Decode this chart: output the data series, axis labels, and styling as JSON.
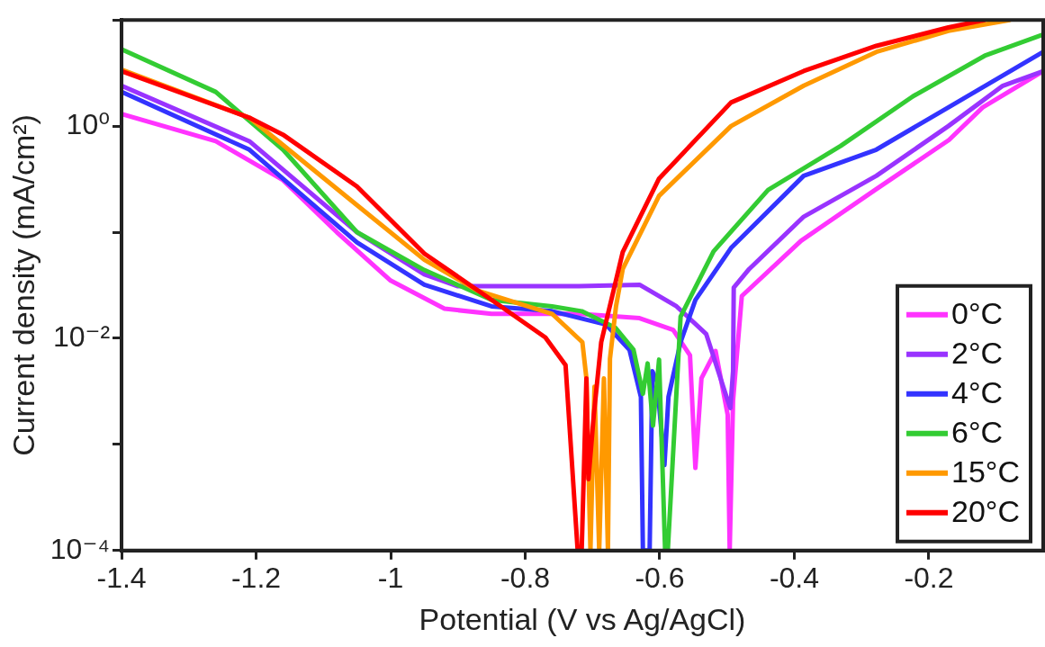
{
  "chart_data": {
    "type": "line",
    "xlabel": "Potential (V vs Ag/AgCl)",
    "ylabel": "Current density (mA/cm²)",
    "xlim": [
      -1.4,
      -0.03
    ],
    "xticks": [
      -1.4,
      -1.2,
      -1,
      -0.8,
      -0.6,
      -0.4,
      -0.2
    ],
    "ylim": [
      0.0001,
      10
    ],
    "yticks": [
      {
        "value": 0.0001,
        "label": "10⁻⁴"
      },
      {
        "value": 0.001,
        "label": null
      },
      {
        "value": 0.01,
        "label": "10⁻²"
      },
      {
        "value": 0.1,
        "label": null
      },
      {
        "value": 1,
        "label": "10⁰"
      },
      {
        "value": 10,
        "label": null
      }
    ],
    "log": "y",
    "grid": false,
    "legend": "bottom right",
    "marker": "none",
    "line_style": "solid",
    "series": [
      {
        "name": "0°C",
        "color": "#ff33ff",
        "x": [
          -1.4,
          -1.26,
          -1.16,
          -1.08,
          -1.0,
          -0.92,
          -0.85,
          -0.72,
          -0.63,
          -0.58,
          -0.555,
          -0.547,
          -0.538,
          -0.517,
          -0.499,
          -0.496,
          -0.491,
          -0.478,
          -0.39,
          -0.28,
          -0.17,
          -0.12,
          -0.03
        ],
        "values": [
          1.3,
          0.72,
          0.31,
          0.1,
          0.035,
          0.019,
          0.017,
          0.017,
          0.0155,
          0.012,
          0.0069,
          0.0006,
          0.0042,
          0.0076,
          0.0019,
          0.0001,
          0.0026,
          0.025,
          0.083,
          0.25,
          0.74,
          1.5,
          3.3
        ]
      },
      {
        "name": "2°C",
        "color": "#9933ff",
        "x": [
          -1.4,
          -1.21,
          -1.05,
          -0.95,
          -0.9,
          -0.72,
          -0.63,
          -0.575,
          -0.531,
          -0.499,
          -0.495,
          -0.491,
          -0.49,
          -0.467,
          -0.386,
          -0.278,
          -0.171,
          -0.09,
          -0.03
        ],
        "values": [
          2.4,
          0.72,
          0.1,
          0.04,
          0.031,
          0.031,
          0.032,
          0.02,
          0.011,
          0.0026,
          0.0022,
          0.0049,
          0.03,
          0.045,
          0.14,
          0.34,
          1.0,
          2.4,
          3.3
        ]
      },
      {
        "name": "4°C",
        "color": "#3333ff",
        "x": [
          -1.4,
          -1.21,
          -1.05,
          -0.95,
          -0.85,
          -0.76,
          -0.68,
          -0.645,
          -0.628,
          -0.625,
          -0.615,
          -0.611,
          -0.604,
          -0.593,
          -0.587,
          -0.569,
          -0.547,
          -0.494,
          -0.386,
          -0.278,
          -0.171,
          -0.03
        ],
        "values": [
          2.1,
          0.6,
          0.08,
          0.032,
          0.02,
          0.018,
          0.0135,
          0.0078,
          0.0028,
          0.0001,
          0.0001,
          0.0049,
          0.0039,
          0.00064,
          0.0028,
          0.0092,
          0.023,
          0.071,
          0.34,
          0.6,
          1.5,
          5.0
        ]
      },
      {
        "name": "6°C",
        "color": "#33cc33",
        "x": [
          -1.4,
          -1.26,
          -1.16,
          -1.05,
          -0.95,
          -0.85,
          -0.76,
          -0.716,
          -0.666,
          -0.639,
          -0.625,
          -0.618,
          -0.61,
          -0.601,
          -0.592,
          -0.588,
          -0.569,
          -0.52,
          -0.439,
          -0.331,
          -0.224,
          -0.117,
          -0.03
        ],
        "values": [
          5.3,
          2.1,
          0.6,
          0.1,
          0.044,
          0.023,
          0.02,
          0.018,
          0.0126,
          0.0078,
          0.003,
          0.0058,
          0.0015,
          0.0063,
          0.0001,
          0.0001,
          0.016,
          0.066,
          0.25,
          0.65,
          1.9,
          4.6,
          7.3
        ]
      },
      {
        "name": "15°C",
        "color": "#ff9900",
        "x": [
          -1.4,
          -1.21,
          -1.05,
          -0.95,
          -0.87,
          -0.76,
          -0.715,
          -0.709,
          -0.703,
          -0.697,
          -0.69,
          -0.683,
          -0.677,
          -0.674,
          -0.665,
          -0.655,
          -0.601,
          -0.494,
          -0.386,
          -0.278,
          -0.171,
          -0.08
        ],
        "values": [
          3.4,
          1.2,
          0.18,
          0.055,
          0.028,
          0.017,
          0.0092,
          0.0042,
          0.0001,
          0.0035,
          0.0001,
          0.0042,
          0.0001,
          0.0064,
          0.02,
          0.045,
          0.22,
          1.0,
          2.4,
          5.0,
          7.9,
          10
        ]
      },
      {
        "name": "20°C",
        "color": "#ff0000",
        "x": [
          -1.4,
          -1.21,
          -1.16,
          -1.05,
          -0.95,
          -0.85,
          -0.77,
          -0.74,
          -0.722,
          -0.716,
          -0.709,
          -0.706,
          -0.698,
          -0.687,
          -0.655,
          -0.601,
          -0.494,
          -0.386,
          -0.278,
          -0.171,
          -0.117
        ],
        "values": [
          3.3,
          1.2,
          0.83,
          0.27,
          0.063,
          0.023,
          0.0102,
          0.0056,
          0.0001,
          0.0001,
          0.0042,
          0.00047,
          0.0019,
          0.0092,
          0.065,
          0.32,
          1.67,
          3.3,
          5.7,
          8.5,
          10
        ]
      }
    ]
  }
}
